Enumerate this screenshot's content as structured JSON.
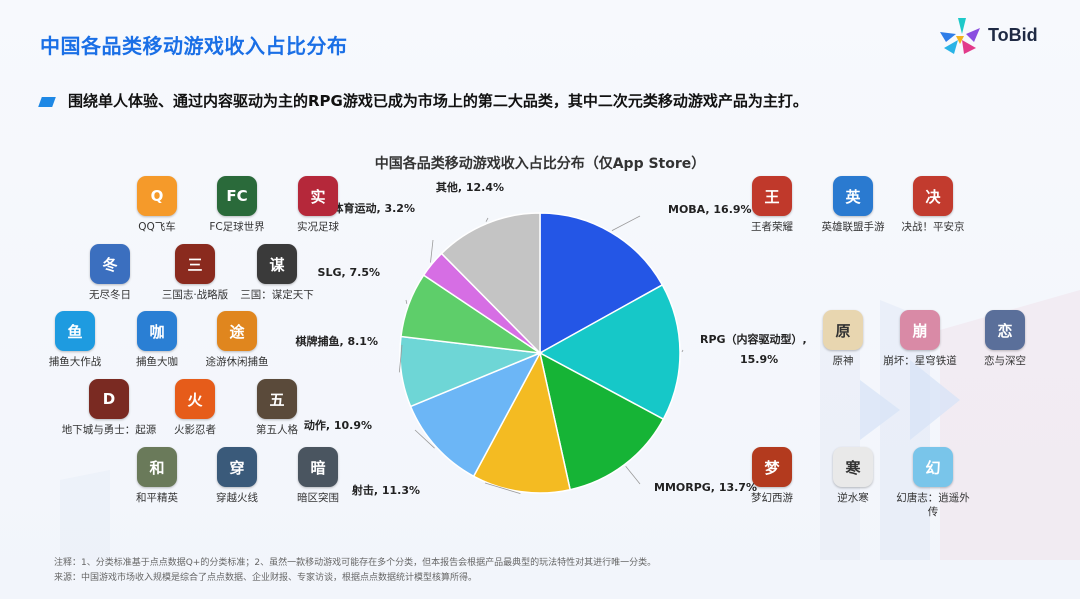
{
  "page": {
    "title": "中国各品类移动游戏收入占比分布",
    "subtitle": "围绕单人体验、通过内容驱动为主的RPG游戏已成为市场上的第二大品类，其中二次元类移动游戏产品为主打。",
    "brand": "ToBid",
    "note1": "注释：1、分类标准基于点点数据Q+的分类标准；2、虽然一款移动游戏可能存在多个分类，但本报告会根据产品最典型的玩法特性对其进行唯一分类。",
    "note2": "来源：中国游戏市场收入规模是综合了点点数据、企业财报、专家访谈，根据点点数据统计模型核算所得。"
  },
  "chart_data": {
    "type": "pie",
    "title": "中国各品类移动游戏收入占比分布（仅App Store）",
    "slices": [
      {
        "label": "MOBA",
        "value": 16.9,
        "display": "MOBA, 16.9%",
        "color": "#2456e6"
      },
      {
        "label": "RPG（内容驱动型）",
        "value": 15.9,
        "display1": "RPG（内容驱动型）,",
        "display2": "15.9%",
        "color": "#16c8c8"
      },
      {
        "label": "MMORPG",
        "value": 13.7,
        "display": "MMORPG, 13.7%",
        "color": "#16b436"
      },
      {
        "label": "射击",
        "value": 11.3,
        "display": "射击, 11.3%",
        "color": "#f4bb22"
      },
      {
        "label": "动作",
        "value": 10.9,
        "display": "动作, 10.9%",
        "color": "#6cb6f6"
      },
      {
        "label": "棋牌捕鱼",
        "value": 8.1,
        "display": "棋牌捕鱼, 8.1%",
        "color": "#6ed6d6"
      },
      {
        "label": "SLG",
        "value": 7.5,
        "display": "SLG, 7.5%",
        "color": "#5ece6a"
      },
      {
        "label": "体育运动",
        "value": 3.2,
        "display": "体育运动, 3.2%",
        "color": "#d66ee4"
      },
      {
        "label": "其他",
        "value": 12.4,
        "display": "其他, 12.4%",
        "color": "#c4c4c4"
      }
    ]
  },
  "apps": [
    {
      "name": "QQ飞车",
      "color": "#f59a2a",
      "glyph": "Q"
    },
    {
      "name": "FC足球世界",
      "color": "#2a6a3a",
      "glyph": "FC"
    },
    {
      "name": "实况足球",
      "color": "#b5283a",
      "glyph": "实"
    },
    {
      "name": "无尽冬日",
      "color": "#3b6fbf",
      "glyph": "冬"
    },
    {
      "name": "三国志·战略版",
      "color": "#8a2a1e",
      "glyph": "三"
    },
    {
      "name": "三国：谋定天下",
      "color": "#3a3a3a",
      "glyph": "谋"
    },
    {
      "name": "捕鱼大作战",
      "color": "#1e9be0",
      "glyph": "鱼"
    },
    {
      "name": "捕鱼大咖",
      "color": "#2a7fd4",
      "glyph": "咖"
    },
    {
      "name": "途游休闲捕鱼",
      "color": "#e0861e",
      "glyph": "途"
    },
    {
      "name": "地下城与勇士：起源",
      "color": "#7a2a22",
      "glyph": "D"
    },
    {
      "name": "火影忍者",
      "color": "#e65c1a",
      "glyph": "火"
    },
    {
      "name": "第五人格",
      "color": "#5a4a3a",
      "glyph": "五"
    },
    {
      "name": "和平精英",
      "color": "#6a7a5a",
      "glyph": "和"
    },
    {
      "name": "穿越火线",
      "color": "#3a5a7a",
      "glyph": "穿"
    },
    {
      "name": "暗区突围",
      "color": "#4a5560",
      "glyph": "暗"
    },
    {
      "name": "王者荣耀",
      "color": "#c0392b",
      "glyph": "王"
    },
    {
      "name": "英雄联盟手游",
      "color": "#2a7ad0",
      "glyph": "英"
    },
    {
      "name": "决战！平安京",
      "color": "#c23b2e",
      "glyph": "决"
    },
    {
      "name": "原神",
      "color": "#e8d6b0",
      "glyph": "原"
    },
    {
      "name": "崩坏：星穹铁道",
      "color": "#d98aa6",
      "glyph": "崩"
    },
    {
      "name": "恋与深空",
      "color": "#5a6f9a",
      "glyph": "恋"
    },
    {
      "name": "梦幻西游",
      "color": "#b33a1e",
      "glyph": "梦"
    },
    {
      "name": "逆水寒",
      "color": "#e9e9e9",
      "glyph": "寒"
    },
    {
      "name": "幻唐志：逍遥外传",
      "color": "#79c5ea",
      "glyph": "幻"
    }
  ]
}
